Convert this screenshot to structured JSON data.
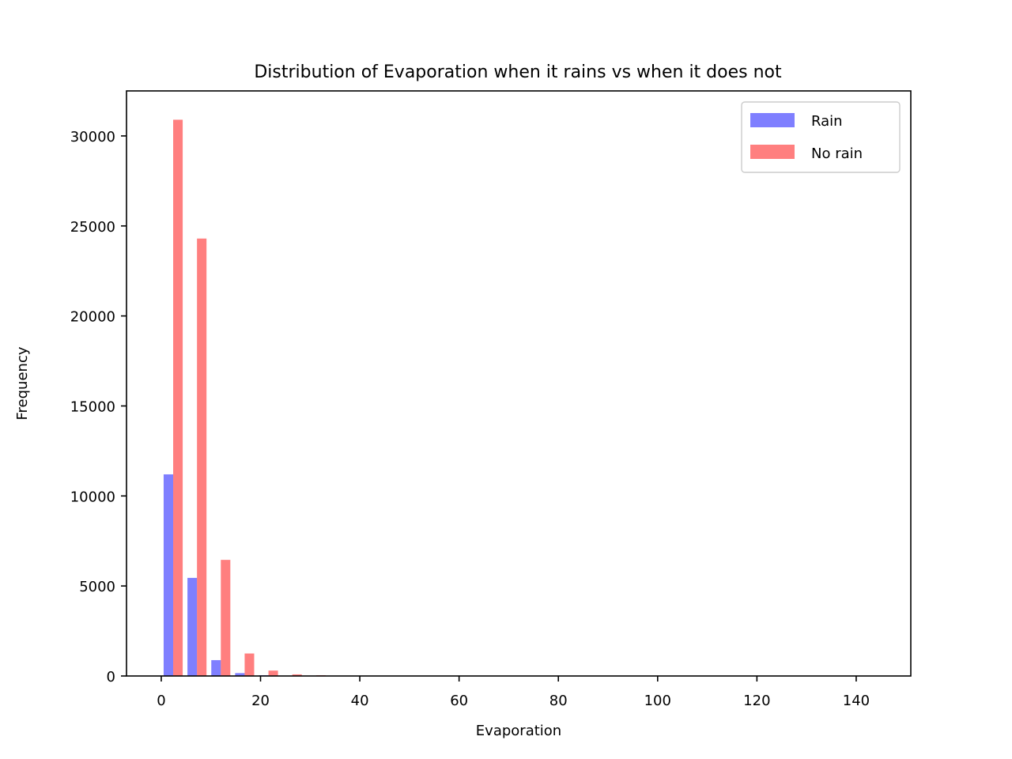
{
  "chart_data": {
    "type": "bar",
    "title": "Distribution of Evaporation when it rains vs when it does not",
    "xlabel": "Evaporation",
    "ylabel": "Frequency",
    "xlim": [
      -7,
      151
    ],
    "ylim": [
      0,
      32500
    ],
    "xticks": [
      0,
      20,
      40,
      60,
      80,
      100,
      120,
      140
    ],
    "yticks": [
      0,
      5000,
      10000,
      15000,
      20000,
      25000,
      30000
    ],
    "bin_width": 4.8,
    "bins": [
      0,
      4.8,
      9.6,
      14.4,
      19.2,
      24.0,
      28.8,
      33.6,
      38.4,
      43.2,
      48.0,
      52.8,
      57.6,
      62.4,
      67.2,
      72.0,
      76.8,
      81.6,
      86.4,
      91.2,
      96.0,
      100.8,
      105.6,
      110.4,
      115.2,
      120.0,
      124.8,
      129.6,
      134.4,
      139.2
    ],
    "series": [
      {
        "name": "Rain",
        "color": "#0000ff",
        "alpha": 0.5,
        "values": [
          11200,
          5450,
          880,
          160,
          40,
          10,
          5,
          3,
          2,
          1,
          1,
          0,
          0,
          0,
          0,
          0,
          0,
          0,
          0,
          0,
          0,
          0,
          0,
          0,
          0,
          0,
          0,
          0,
          0,
          0
        ]
      },
      {
        "name": "No rain",
        "color": "#ff0000",
        "alpha": 0.5,
        "values": [
          30900,
          24300,
          6450,
          1250,
          300,
          90,
          40,
          20,
          10,
          6,
          4,
          3,
          2,
          1,
          1,
          1,
          1,
          1,
          1,
          1,
          1,
          1,
          1,
          1,
          1,
          1,
          1,
          1,
          1,
          1
        ]
      }
    ],
    "legend": {
      "placement": "top-right"
    },
    "grid": false
  }
}
